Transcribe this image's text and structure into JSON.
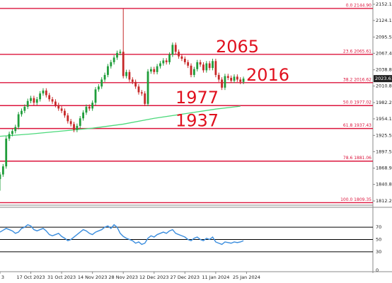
{
  "chart_data": {
    "type": "candlestick",
    "xlim": [
      0,
      121
    ],
    "xticks": [
      {
        "value": 0,
        "label": "3"
      },
      {
        "value": 10,
        "label": "17 Oct 2023"
      },
      {
        "value": 20,
        "label": "31 Oct 2023"
      },
      {
        "value": 30,
        "label": "14 Nov 2023"
      },
      {
        "value": 40,
        "label": "28 Nov 2023"
      },
      {
        "value": 50,
        "label": "12 Dec 2023"
      },
      {
        "value": 60,
        "label": "27 Dec 2023"
      },
      {
        "value": 70,
        "label": "11 Jan 2024"
      },
      {
        "value": 80,
        "label": "25 Jan 2024"
      }
    ],
    "ylim": [
      1804.95,
      2159.48
    ],
    "yticks": [
      2152.15,
      {
        "value": 2124.1,
        "label": "2124.10"
      },
      {
        "value": 2095.5,
        "label": "2095.50"
      },
      2067.45,
      2038.85,
      {
        "value": 2010.8,
        "label": "2010.80"
      },
      {
        "value": 1982.2,
        "label": "1982.20"
      },
      1954.15,
      1925.55,
      {
        "value": 1897.5,
        "label": "1897.50"
      },
      {
        "value": 1868.9,
        "label": "1868.90"
      },
      1840.85,
      1812.25
    ],
    "up_color": "#1f9d3a",
    "down_color": "#c62828",
    "open": [
      1850,
      1858,
      1872,
      1920,
      1928,
      1933,
      1940,
      1962,
      1968,
      1975,
      1985,
      1990,
      1982,
      1988,
      1998,
      2003,
      1995,
      1988,
      1984,
      1978,
      1972,
      1968,
      1960,
      1950,
      1945,
      1935,
      1942,
      1955,
      1965,
      1975,
      1972,
      1982,
      2005,
      2010,
      2022,
      2030,
      2045,
      2052,
      2060,
      2068,
      2070,
      2028,
      2035,
      2022,
      2018,
      2010,
      2000,
      1998,
      1980,
      2036,
      2040,
      2035,
      2045,
      2050,
      2055,
      2052,
      2065,
      2082,
      2070,
      2062,
      2058,
      2052,
      2046,
      2030,
      2040,
      2052,
      2048,
      2038,
      2050,
      2042,
      2054,
      2030,
      2022,
      2008,
      2028,
      2025,
      2020,
      2027,
      2022,
      2018
    ],
    "high": [
      1862,
      1876,
      1924,
      1932,
      1937,
      1944,
      1966,
      1972,
      1979,
      1989,
      1994,
      1994,
      1992,
      2002,
      2007,
      2007,
      1999,
      1992,
      1988,
      1982,
      1976,
      1972,
      1964,
      1954,
      1949,
      1946,
      1959,
      1969,
      1979,
      1979,
      1986,
      2009,
      2014,
      2026,
      2034,
      2049,
      2056,
      2064,
      2072,
      2074,
      2144.9,
      2039,
      2039,
      2026,
      2022,
      2014,
      2004,
      2002,
      2040,
      2044,
      2044,
      2049,
      2054,
      2059,
      2059,
      2069,
      2086,
      2086,
      2074,
      2066,
      2062,
      2056,
      2050,
      2044,
      2056,
      2056,
      2052,
      2054,
      2054,
      2058,
      2058,
      2034,
      2026,
      2032,
      2032,
      2029,
      2031,
      2031,
      2026,
      2027
    ],
    "low": [
      1830,
      1854,
      1868,
      1916,
      1924,
      1929,
      1936,
      1958,
      1964,
      1971,
      1981,
      1978,
      1978,
      1984,
      1994,
      1991,
      1984,
      1980,
      1974,
      1968,
      1964,
      1956,
      1946,
      1941,
      1931,
      1931,
      1938,
      1951,
      1961,
      1968,
      1968,
      1978,
      2001,
      2006,
      2018,
      2026,
      2041,
      2048,
      2056,
      2064,
      2024,
      2024,
      2018,
      2014,
      2006,
      1996,
      1994,
      1976,
      1976,
      2032,
      2031,
      2031,
      2041,
      2046,
      2048,
      2048,
      2061,
      2066,
      2058,
      2054,
      2048,
      2042,
      2026,
      2026,
      2036,
      2044,
      2034,
      2034,
      2038,
      2038,
      2026,
      2018,
      2004,
      2004,
      2021,
      2016,
      2016,
      2018,
      2014,
      2014
    ],
    "close": [
      1858,
      1872,
      1920,
      1928,
      1933,
      1940,
      1962,
      1968,
      1975,
      1985,
      1990,
      1982,
      1988,
      1998,
      2003,
      1995,
      1988,
      1984,
      1978,
      1972,
      1968,
      1960,
      1950,
      1945,
      1935,
      1942,
      1955,
      1965,
      1975,
      1972,
      1982,
      2005,
      2010,
      2022,
      2030,
      2045,
      2052,
      2060,
      2068,
      2070,
      2028,
      2035,
      2022,
      2018,
      2010,
      2000,
      1998,
      1980,
      2036,
      2040,
      2035,
      2045,
      2050,
      2055,
      2052,
      2065,
      2082,
      2070,
      2062,
      2058,
      2052,
      2046,
      2030,
      2040,
      2052,
      2048,
      2038,
      2050,
      2042,
      2054,
      2030,
      2022,
      2008,
      2028,
      2025,
      2020,
      2027,
      2022,
      2018,
      2023.61
    ],
    "ma": {
      "color": "#4cd97b",
      "x": [
        0,
        10,
        20,
        30,
        40,
        50,
        60,
        70,
        78
      ],
      "values": [
        1924,
        1928,
        1933,
        1938,
        1945,
        1955,
        1963,
        1971,
        1976
      ]
    },
    "level_color": "#dc143c",
    "levels": [
      {
        "value": 2144.9,
        "label": "0.0 2144.90"
      },
      {
        "value": 2065.61,
        "label": "23.6 2065.61"
      },
      {
        "value": 2016.62,
        "label": "38.2 2016.62"
      },
      {
        "value": 1977.02,
        "label": "50.0 1977.02"
      },
      {
        "value": 1937.43,
        "label": "61.8 1937.43"
      },
      {
        "value": 1881.06,
        "label": "78.6 1881.06"
      },
      {
        "value": 1809.35,
        "label": "100.0 1809.35"
      }
    ],
    "annotations": [
      "2065",
      "2016",
      "1977",
      "1937"
    ],
    "rsi": {
      "color": "#3a8dde",
      "ylim": [
        0,
        100
      ],
      "yticks": [
        70,
        50,
        30,
        0
      ],
      "values": [
        62,
        65,
        68,
        66,
        64,
        60,
        62,
        68,
        70,
        74,
        72,
        66,
        64,
        66,
        68,
        64,
        58,
        56,
        58,
        60,
        55,
        52,
        48,
        50,
        54,
        58,
        62,
        66,
        64,
        60,
        58,
        62,
        64,
        66,
        70,
        72,
        68,
        74,
        70,
        60,
        55,
        52,
        50,
        48,
        44,
        46,
        42,
        44,
        52,
        56,
        54,
        58,
        60,
        62,
        60,
        64,
        66,
        60,
        58,
        56,
        54,
        50,
        48,
        52,
        54,
        50,
        48,
        52,
        50,
        54,
        46,
        44,
        42,
        46,
        45,
        44,
        46,
        45,
        46,
        48
      ]
    }
  }
}
